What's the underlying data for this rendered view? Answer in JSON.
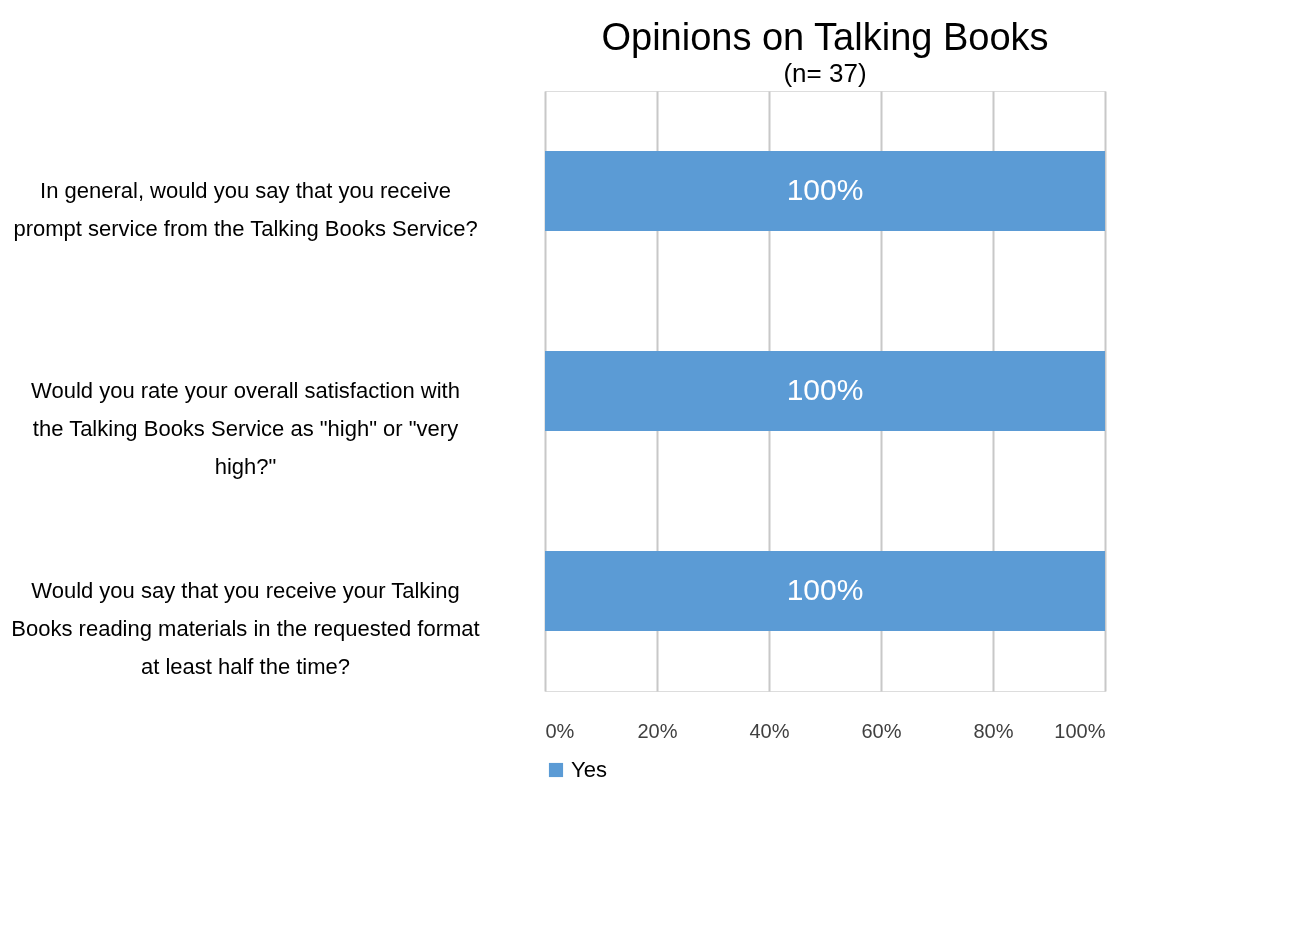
{
  "chart_data": {
    "type": "bar",
    "orientation": "horizontal",
    "title": "Opinions on Talking Books",
    "subtitle": "(n= 37)",
    "categories": [
      "In general, would you say that you receive prompt service from the Talking Books Service?",
      "Would you rate your overall satisfaction with the Talking Books Service as \"high\" or \"very high?\"",
      "Would you say that you receive your Talking Books reading materials in the requested format at least half the time?"
    ],
    "series": [
      {
        "name": "Yes",
        "color": "#5b9bd5",
        "values": [
          100,
          100,
          100
        ],
        "value_labels": [
          "100%",
          "100%",
          "100%"
        ]
      }
    ],
    "xlim": [
      0,
      100
    ],
    "xticks": [
      {
        "value": 0,
        "label": "0%"
      },
      {
        "value": 20,
        "label": "20%"
      },
      {
        "value": 40,
        "label": "40%"
      },
      {
        "value": 60,
        "label": "60%"
      },
      {
        "value": 80,
        "label": "80%"
      },
      {
        "value": 100,
        "label": "100%"
      }
    ],
    "grid": "x",
    "legend": "bottom"
  }
}
